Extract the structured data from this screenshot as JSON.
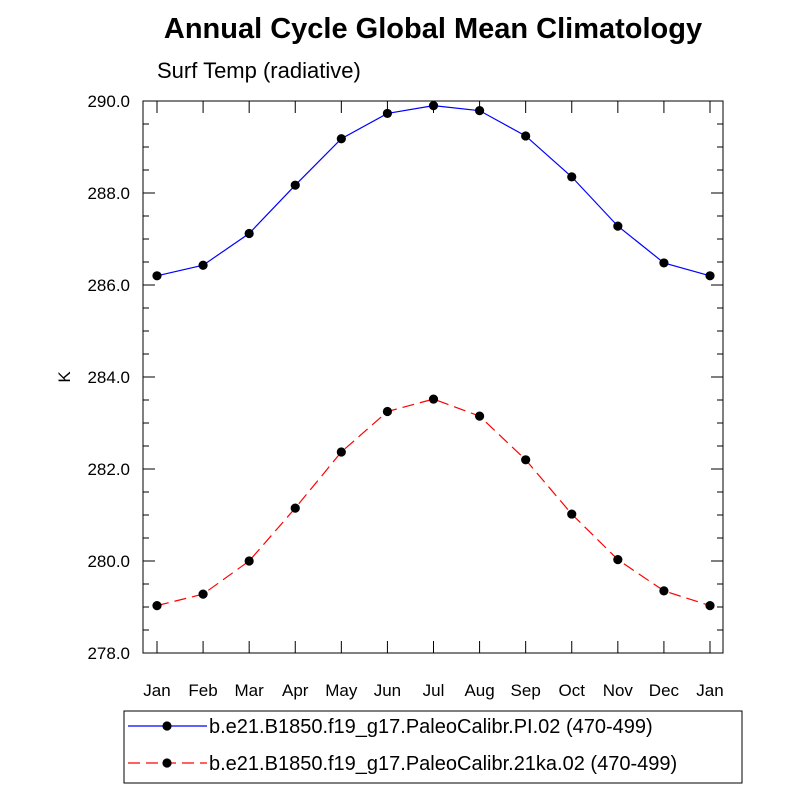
{
  "chart_data": {
    "type": "line",
    "title": "Annual Cycle Global Mean Climatology",
    "subtitle": "Surf Temp (radiative)",
    "xlabel": "",
    "ylabel": "K",
    "categories": [
      "Jan",
      "Feb",
      "Mar",
      "Apr",
      "May",
      "Jun",
      "Jul",
      "Aug",
      "Sep",
      "Oct",
      "Nov",
      "Dec",
      "Jan"
    ],
    "ylim": [
      278.0,
      290.0
    ],
    "yticks": [
      "278.0",
      "280.0",
      "282.0",
      "284.0",
      "286.0",
      "288.0",
      "290.0"
    ],
    "grid": false,
    "legend_position": "bottom",
    "series": [
      {
        "name": "b.e21.B1850.f19_g17.PaleoCalibr.PI.02 (470-499)",
        "color": "#0000ff",
        "line_style": "solid",
        "marker": "filled-circle",
        "values": [
          286.2,
          286.43,
          287.12,
          288.17,
          289.18,
          289.73,
          289.9,
          289.79,
          289.24,
          288.35,
          287.28,
          286.48,
          286.2
        ]
      },
      {
        "name": "b.e21.B1850.f19_g17.PaleoCalibr.21ka.02 (470-499)",
        "color": "#ff0000",
        "line_style": "dashed",
        "marker": "filled-circle",
        "values": [
          279.03,
          279.28,
          280.0,
          281.15,
          282.37,
          283.25,
          283.52,
          283.15,
          282.2,
          281.02,
          280.03,
          279.35,
          279.03
        ]
      }
    ]
  }
}
